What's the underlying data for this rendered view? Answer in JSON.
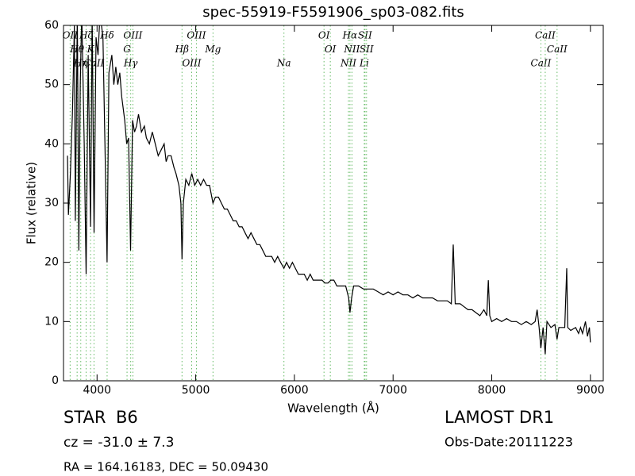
{
  "chart_data": {
    "type": "line",
    "title": "spec-55919-F5591906_sp03-082.fits",
    "xlabel": "Wavelength (Å)",
    "ylabel": "Flux (relative)",
    "xlim": [
      3660,
      9130
    ],
    "ylim": [
      0,
      60
    ],
    "xticks": [
      4000,
      5000,
      6000,
      7000,
      8000,
      9000
    ],
    "yticks": [
      0,
      10,
      20,
      30,
      40,
      50,
      60
    ],
    "color": "#000000",
    "line_color": "#66bb66",
    "x": [
      3700,
      3710,
      3730,
      3750,
      3770,
      3780,
      3800,
      3815,
      3830,
      3845,
      3870,
      3889,
      3910,
      3934,
      3950,
      3970,
      3990,
      4010,
      4030,
      4060,
      4080,
      4102,
      4120,
      4150,
      4170,
      4190,
      4210,
      4230,
      4250,
      4280,
      4300,
      4320,
      4340,
      4360,
      4380,
      4400,
      4420,
      4450,
      4480,
      4500,
      4530,
      4560,
      4590,
      4620,
      4650,
      4680,
      4700,
      4720,
      4750,
      4780,
      4800,
      4830,
      4850,
      4861,
      4875,
      4900,
      4930,
      4960,
      4990,
      5020,
      5050,
      5080,
      5110,
      5140,
      5175,
      5200,
      5230,
      5260,
      5290,
      5320,
      5350,
      5380,
      5410,
      5440,
      5470,
      5500,
      5530,
      5560,
      5590,
      5620,
      5650,
      5680,
      5710,
      5740,
      5770,
      5800,
      5830,
      5860,
      5894,
      5920,
      5950,
      5980,
      6010,
      6040,
      6070,
      6100,
      6130,
      6160,
      6190,
      6220,
      6250,
      6280,
      6310,
      6340,
      6370,
      6400,
      6430,
      6460,
      6490,
      6520,
      6550,
      6563,
      6580,
      6600,
      6650,
      6700,
      6750,
      6800,
      6850,
      6900,
      6950,
      7000,
      7050,
      7100,
      7150,
      7200,
      7250,
      7300,
      7350,
      7400,
      7450,
      7500,
      7550,
      7590,
      7610,
      7630,
      7680,
      7720,
      7760,
      7800,
      7840,
      7880,
      7920,
      7950,
      7965,
      7980,
      8000,
      8050,
      8100,
      8150,
      8200,
      8250,
      8300,
      8350,
      8400,
      8440,
      8460,
      8480,
      8498,
      8520,
      8542,
      8560,
      8600,
      8640,
      8662,
      8680,
      8700,
      8740,
      8760,
      8770,
      8800,
      8850,
      8880,
      8900,
      8920,
      8950,
      8970,
      8990,
      9000
    ],
    "values": [
      38,
      28,
      35,
      45,
      60,
      27,
      62,
      22,
      50,
      62,
      40,
      18,
      55,
      26,
      62,
      25,
      58,
      55,
      62,
      58,
      40,
      20,
      52,
      55,
      50,
      53,
      50,
      52,
      48,
      44,
      40,
      41,
      22,
      44,
      42,
      43,
      45,
      42,
      43,
      41,
      40,
      42,
      40,
      38,
      39,
      40,
      37,
      38,
      38,
      36,
      35,
      33,
      30,
      20.5,
      30,
      34,
      33,
      35,
      33,
      34,
      33,
      34,
      33,
      33,
      30,
      31,
      31,
      30,
      29,
      29,
      28,
      27,
      27,
      26,
      26,
      25,
      24,
      25,
      24,
      23,
      23,
      22,
      21,
      21,
      21,
      20,
      21,
      20,
      19,
      20,
      19,
      20,
      19,
      18,
      18,
      18,
      17,
      18,
      17,
      17,
      17,
      17,
      16.5,
      16.5,
      17,
      17,
      16,
      16,
      16,
      16,
      14,
      11.5,
      14,
      16,
      16,
      15.5,
      15.5,
      15.5,
      15,
      14.5,
      15,
      14.5,
      15,
      14.5,
      14.5,
      14,
      14.5,
      14,
      14,
      14,
      13.5,
      13.5,
      13.5,
      13,
      23,
      13,
      13,
      12.5,
      12,
      12,
      11.5,
      11,
      12,
      11,
      17,
      11,
      10,
      10.5,
      10,
      10.5,
      10,
      10,
      9.5,
      10,
      9.5,
      10,
      12,
      9,
      5.5,
      9,
      4.5,
      10,
      9,
      9.5,
      7,
      9,
      9,
      9,
      19,
      9,
      8.5,
      9,
      8,
      9,
      8,
      10,
      7.5,
      9,
      6.5
    ],
    "lines": [
      {
        "label": "OII",
        "x": 3727
      },
      {
        "label": "Hθ",
        "x": 3798
      },
      {
        "label": "Hη",
        "x": 3835
      },
      {
        "label": "Hζ",
        "x": 3889
      },
      {
        "label": "K",
        "x": 3934
      },
      {
        "label": "CaII",
        "x": 3969
      },
      {
        "label": "Hδ",
        "x": 4102
      },
      {
        "label": "G",
        "x": 4304
      },
      {
        "label": "Hγ",
        "x": 4341
      },
      {
        "label": "OIII",
        "x": 4363
      },
      {
        "label": "Hβ",
        "x": 4861
      },
      {
        "label": "OIII",
        "x": 4959
      },
      {
        "label": "OIII",
        "x": 5007
      },
      {
        "label": "Mg",
        "x": 5175
      },
      {
        "label": "Na",
        "x": 5894
      },
      {
        "label": "OI",
        "x": 6300
      },
      {
        "label": "OI",
        "x": 6364
      },
      {
        "label": "NII",
        "x": 6548
      },
      {
        "label": "Hα",
        "x": 6563
      },
      {
        "label": "NII",
        "x": 6583
      },
      {
        "label": "Li",
        "x": 6708
      },
      {
        "label": "SII",
        "x": 6716
      },
      {
        "label": "SII",
        "x": 6731
      },
      {
        "label": "CaII",
        "x": 8498
      },
      {
        "label": "CaII",
        "x": 8542
      },
      {
        "label": "CaII",
        "x": 8662
      }
    ],
    "info": {
      "object_class": "STAR",
      "subclass": "B6",
      "cz": "cz = -31.0 ± 7.3",
      "coords": "RA = 164.16183, DEC = 50.09430",
      "release": "LAMOST DR1",
      "obs_date": "Obs-Date:20111223"
    }
  }
}
